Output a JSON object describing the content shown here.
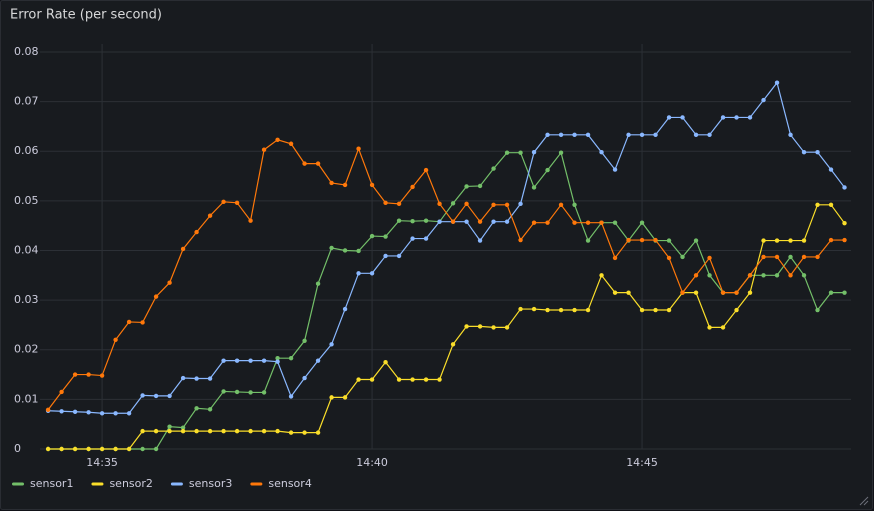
{
  "chart_data": {
    "type": "line",
    "title": "Error Rate (per second)",
    "x": [
      34,
      34.25,
      34.5,
      34.75,
      35,
      35.25,
      35.5,
      35.75,
      36,
      36.25,
      36.5,
      36.75,
      37,
      37.25,
      37.5,
      37.75,
      38,
      38.25,
      38.5,
      38.75,
      39,
      39.25,
      39.5,
      39.75,
      40,
      40.25,
      40.5,
      40.75,
      41,
      41.25,
      41.5,
      41.75,
      42,
      42.25,
      42.5,
      42.75,
      43,
      43.25,
      43.5,
      43.75,
      44,
      44.25,
      44.5,
      44.75,
      45,
      45.25,
      45.5,
      45.75,
      46,
      46.25,
      46.5,
      46.75,
      47,
      47.25,
      47.5,
      47.75,
      48,
      48.25,
      48.5,
      48.75
    ],
    "xlim": [
      33.85,
      48.87
    ],
    "xticks": [
      {
        "value": 35,
        "label": "14:35"
      },
      {
        "value": 40,
        "label": "14:40"
      },
      {
        "value": 45,
        "label": "14:45"
      }
    ],
    "ylim": [
      0,
      0.0816
    ],
    "yticks": [
      0,
      0.01,
      0.02,
      0.03,
      0.04,
      0.05,
      0.06,
      0.07,
      0.08
    ],
    "grid": true,
    "legend": "bottom",
    "series": [
      {
        "name": "sensor1",
        "color": "#73bf69",
        "values": [
          0,
          0,
          0,
          0,
          0,
          0,
          0,
          0,
          0,
          0.0045,
          0.0043,
          0.0082,
          0.008,
          0.0116,
          0.0115,
          0.0114,
          0.0114,
          0.0183,
          0.0183,
          0.0218,
          0.0333,
          0.0405,
          0.04,
          0.0399,
          0.0429,
          0.0428,
          0.046,
          0.0459,
          0.046,
          0.0458,
          0.0495,
          0.0529,
          0.053,
          0.0565,
          0.0597,
          0.0597,
          0.0527,
          0.0562,
          0.0597,
          0.0492,
          0.042,
          0.0456,
          0.0456,
          0.042,
          0.0456,
          0.042,
          0.042,
          0.0387,
          0.042,
          0.035,
          0.0315,
          0.0315,
          0.035,
          0.035,
          0.035,
          0.0387,
          0.035,
          0.028,
          0.0315,
          0.0315
        ]
      },
      {
        "name": "sensor2",
        "color": "#fade2a",
        "values": [
          0,
          0,
          0,
          0,
          0,
          0,
          0,
          0.0036,
          0.0036,
          0.0036,
          0.0036,
          0.0036,
          0.0036,
          0.0036,
          0.0036,
          0.0036,
          0.0036,
          0.0036,
          0.0033,
          0.0033,
          0.0033,
          0.0104,
          0.0104,
          0.014,
          0.014,
          0.0175,
          0.014,
          0.014,
          0.014,
          0.014,
          0.0211,
          0.0247,
          0.0247,
          0.0245,
          0.0245,
          0.0282,
          0.0282,
          0.028,
          0.028,
          0.028,
          0.028,
          0.035,
          0.0315,
          0.0315,
          0.028,
          0.028,
          0.028,
          0.0315,
          0.0315,
          0.0245,
          0.0245,
          0.028,
          0.0315,
          0.042,
          0.042,
          0.042,
          0.042,
          0.0492,
          0.0492,
          0.0455
        ]
      },
      {
        "name": "sensor3",
        "color": "#8ab8ff",
        "values": [
          0.0077,
          0.0076,
          0.0075,
          0.0074,
          0.0072,
          0.0072,
          0.0072,
          0.0108,
          0.0107,
          0.0107,
          0.0143,
          0.0142,
          0.0142,
          0.0178,
          0.0178,
          0.0178,
          0.0178,
          0.0176,
          0.0106,
          0.0143,
          0.0178,
          0.0211,
          0.0282,
          0.0354,
          0.0354,
          0.0389,
          0.0389,
          0.0424,
          0.0424,
          0.0458,
          0.0458,
          0.0458,
          0.042,
          0.0458,
          0.0458,
          0.0494,
          0.0598,
          0.0633,
          0.0633,
          0.0633,
          0.0633,
          0.0598,
          0.0563,
          0.0633,
          0.0633,
          0.0633,
          0.0668,
          0.0668,
          0.0633,
          0.0633,
          0.0668,
          0.0668,
          0.0668,
          0.0703,
          0.0738,
          0.0633,
          0.0598,
          0.0598,
          0.0563,
          0.0527
        ]
      },
      {
        "name": "sensor4",
        "color": "#ff780a",
        "values": [
          0.0079,
          0.0115,
          0.015,
          0.015,
          0.0148,
          0.022,
          0.0256,
          0.0255,
          0.0307,
          0.0335,
          0.0403,
          0.0437,
          0.047,
          0.0498,
          0.0496,
          0.046,
          0.0603,
          0.0623,
          0.0615,
          0.0575,
          0.0575,
          0.0536,
          0.0532,
          0.0605,
          0.0532,
          0.0496,
          0.0494,
          0.0528,
          0.0562,
          0.0494,
          0.0458,
          0.0494,
          0.0458,
          0.0492,
          0.0492,
          0.0421,
          0.0456,
          0.0456,
          0.0492,
          0.0456,
          0.0456,
          0.0456,
          0.0385,
          0.0421,
          0.0421,
          0.0421,
          0.0385,
          0.0315,
          0.035,
          0.0385,
          0.0315,
          0.0315,
          0.035,
          0.0387,
          0.0387,
          0.035,
          0.0387,
          0.0387,
          0.0421,
          0.0421
        ]
      }
    ]
  }
}
